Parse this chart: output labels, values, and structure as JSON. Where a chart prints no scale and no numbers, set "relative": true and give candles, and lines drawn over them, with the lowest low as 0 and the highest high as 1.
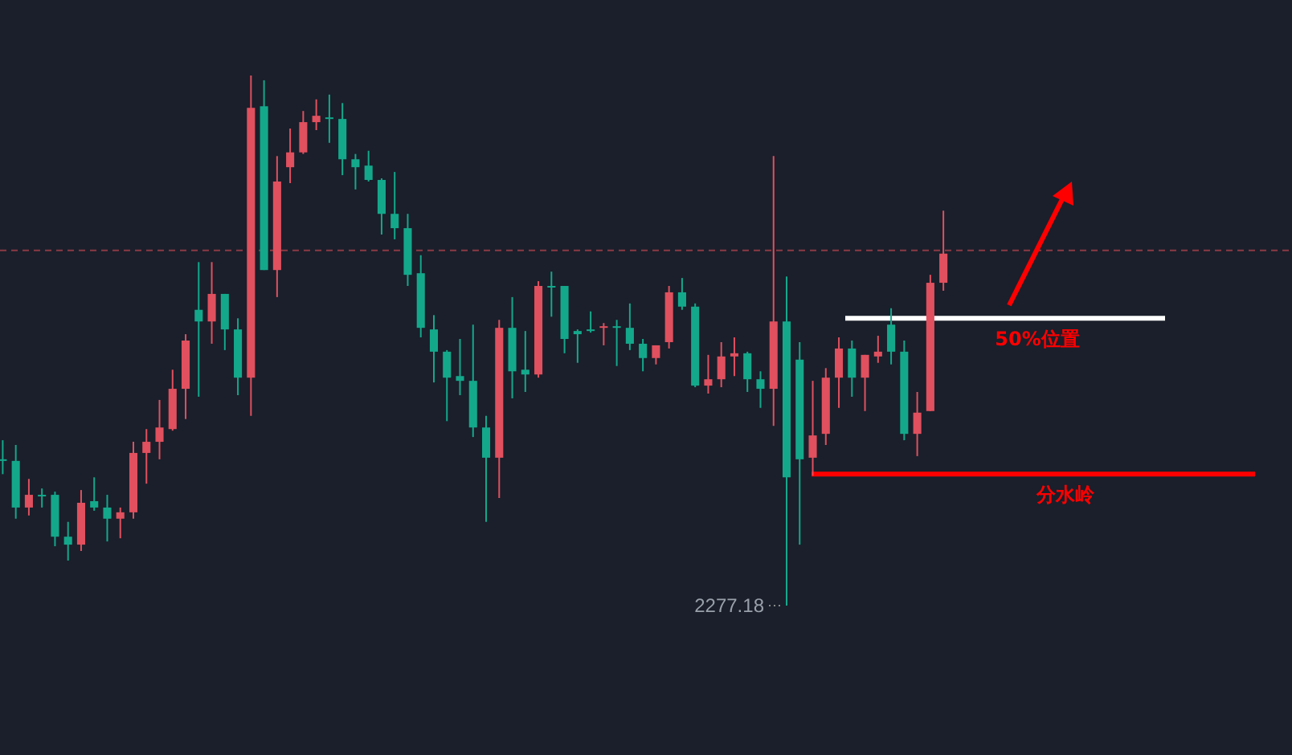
{
  "chart_data": {
    "type": "candlestick",
    "relative": true,
    "categories": [
      null,
      null,
      null,
      null,
      null,
      null,
      null,
      null,
      null,
      null,
      null,
      null,
      null,
      null,
      null,
      null,
      null,
      null,
      null,
      null,
      null,
      null,
      null,
      null,
      null,
      null,
      null,
      null,
      null,
      null,
      null,
      null,
      null,
      null,
      null,
      null,
      null,
      null,
      null,
      null,
      null,
      null,
      null,
      null,
      null,
      null,
      null,
      null,
      null,
      null,
      null,
      null,
      null,
      null,
      null,
      null,
      null,
      null,
      null,
      null,
      null,
      null,
      null,
      null,
      null,
      null,
      null,
      null,
      null,
      null,
      null,
      null,
      null
    ],
    "ohlc": [
      [
        0.276,
        0.312,
        0.248,
        0.273
      ],
      [
        0.273,
        0.303,
        0.164,
        0.185
      ],
      [
        0.185,
        0.239,
        0.17,
        0.209
      ],
      [
        0.209,
        0.221,
        0.185,
        0.209
      ],
      [
        0.209,
        0.215,
        0.112,
        0.13
      ],
      [
        0.13,
        0.158,
        0.085,
        0.115
      ],
      [
        0.115,
        0.218,
        0.103,
        0.194
      ],
      [
        0.197,
        0.242,
        0.179,
        0.185
      ],
      [
        0.185,
        0.209,
        0.121,
        0.164
      ],
      [
        0.164,
        0.185,
        0.127,
        0.176
      ],
      [
        0.176,
        0.309,
        0.164,
        0.288
      ],
      [
        0.288,
        0.333,
        0.23,
        0.309
      ],
      [
        0.309,
        0.388,
        0.276,
        0.336
      ],
      [
        0.333,
        0.445,
        0.33,
        0.409
      ],
      [
        0.409,
        0.512,
        0.352,
        0.5
      ],
      [
        0.558,
        0.648,
        0.394,
        0.536
      ],
      [
        0.536,
        0.648,
        0.494,
        0.588
      ],
      [
        0.588,
        0.588,
        0.482,
        0.521
      ],
      [
        0.521,
        0.542,
        0.397,
        0.43
      ],
      [
        0.43,
        1.0,
        0.358,
        0.939
      ],
      [
        0.942,
        0.991,
        0.633,
        0.633
      ],
      [
        0.633,
        0.848,
        0.582,
        0.8
      ],
      [
        0.827,
        0.9,
        0.797,
        0.855
      ],
      [
        0.855,
        0.933,
        0.852,
        0.912
      ],
      [
        0.912,
        0.955,
        0.897,
        0.924
      ],
      [
        0.921,
        0.964,
        0.873,
        0.921
      ],
      [
        0.918,
        0.948,
        0.812,
        0.842
      ],
      [
        0.842,
        0.852,
        0.785,
        0.827
      ],
      [
        0.83,
        0.858,
        0.8,
        0.803
      ],
      [
        0.803,
        0.806,
        0.7,
        0.739
      ],
      [
        0.739,
        0.818,
        0.691,
        0.712
      ],
      [
        0.712,
        0.739,
        0.603,
        0.624
      ],
      [
        0.627,
        0.661,
        0.506,
        0.524
      ],
      [
        0.521,
        0.548,
        0.421,
        0.479
      ],
      [
        0.479,
        0.482,
        0.348,
        0.43
      ],
      [
        0.433,
        0.503,
        0.397,
        0.424
      ],
      [
        0.424,
        0.53,
        0.318,
        0.336
      ],
      [
        0.336,
        0.358,
        0.158,
        0.279
      ],
      [
        0.279,
        0.539,
        0.203,
        0.524
      ],
      [
        0.524,
        0.582,
        0.391,
        0.442
      ],
      [
        0.445,
        0.518,
        0.403,
        0.436
      ],
      [
        0.436,
        0.612,
        0.43,
        0.603
      ],
      [
        0.603,
        0.63,
        0.545,
        0.603
      ],
      [
        0.603,
        0.603,
        0.476,
        0.503
      ],
      [
        0.518,
        0.521,
        0.458,
        0.512
      ],
      [
        0.521,
        0.555,
        0.515,
        0.521
      ],
      [
        0.527,
        0.533,
        0.491,
        0.527
      ],
      [
        0.527,
        0.539,
        0.452,
        0.527
      ],
      [
        0.524,
        0.57,
        0.482,
        0.494
      ],
      [
        0.494,
        0.503,
        0.442,
        0.467
      ],
      [
        0.467,
        0.491,
        0.455,
        0.491
      ],
      [
        0.497,
        0.603,
        0.485,
        0.591
      ],
      [
        0.591,
        0.618,
        0.558,
        0.564
      ],
      [
        0.564,
        0.57,
        0.412,
        0.415
      ],
      [
        0.415,
        0.473,
        0.4,
        0.427
      ],
      [
        0.427,
        0.497,
        0.412,
        0.47
      ],
      [
        0.47,
        0.506,
        0.433,
        0.476
      ],
      [
        0.476,
        0.479,
        0.403,
        0.427
      ],
      [
        0.427,
        0.442,
        0.373,
        0.409
      ],
      [
        0.409,
        0.848,
        0.339,
        0.536
      ],
      [
        0.536,
        0.621,
        0,
        0.242
      ],
      [
        0.464,
        0.497,
        0.115,
        0.276
      ],
      [
        0.279,
        0.424,
        0.245,
        0.321
      ],
      [
        0.324,
        0.448,
        0.303,
        0.43
      ],
      [
        0.43,
        0.506,
        0.373,
        0.485
      ],
      [
        0.485,
        0.5,
        0.394,
        0.43
      ],
      [
        0.43,
        0.473,
        0.367,
        0.473
      ],
      [
        0.47,
        0.509,
        0.458,
        0.479
      ],
      [
        0.53,
        0.561,
        0.455,
        0.479
      ],
      [
        0.479,
        0.5,
        0.312,
        0.324
      ],
      [
        0.324,
        0.403,
        0.282,
        0.364
      ],
      [
        0.367,
        0.624,
        0.367,
        0.609
      ],
      [
        0.609,
        0.745,
        0.594,
        0.664
      ]
    ],
    "colors": [
      "#14a88b",
      "#14a88b",
      "#e0505e",
      "#14a88b",
      "#14a88b",
      "#14a88b",
      "#e0505e",
      "#14a88b",
      "#14a88b",
      "#e0505e",
      "#e0505e",
      "#e0505e",
      "#e0505e",
      "#e0505e",
      "#e0505e",
      "#14a88b",
      "#e0505e",
      "#14a88b",
      "#14a88b",
      "#e0505e",
      "#14a88b",
      "#e0505e",
      "#e0505e",
      "#e0505e",
      "#e0505e",
      "#14a88b",
      "#14a88b",
      "#14a88b",
      "#14a88b",
      "#14a88b",
      "#14a88b",
      "#14a88b",
      "#14a88b",
      "#14a88b",
      "#14a88b",
      "#14a88b",
      "#14a88b",
      "#14a88b",
      "#e0505e",
      "#14a88b",
      "#14a88b",
      "#e0505e",
      "#14a88b",
      "#14a88b",
      "#14a88b",
      "#14a88b",
      "#e0505e",
      "#14a88b",
      "#14a88b",
      "#14a88b",
      "#e0505e",
      "#e0505e",
      "#14a88b",
      "#14a88b",
      "#e0505e",
      "#e0505e",
      "#e0505e",
      "#14a88b",
      "#14a88b",
      "#e0505e",
      "#14a88b",
      "#14a88b",
      "#e0505e",
      "#e0505e",
      "#e0505e",
      "#14a88b",
      "#e0505e",
      "#e0505e",
      "#14a88b",
      "#14a88b",
      "#e0505e",
      "#e0505e",
      "#e0505e"
    ],
    "ref_lines": [
      {
        "axis": "y",
        "value": 0.67,
        "color": "#8b3a44",
        "line_style": "dashed"
      },
      {
        "axis": "y",
        "value": 0.542,
        "color": "#ffffff",
        "line_style": "solid",
        "label": "50%位置"
      },
      {
        "axis": "y",
        "value": 0.248,
        "color": "#ff0000",
        "line_style": "solid",
        "label": "分水岭"
      }
    ],
    "annotations": [
      "2277.18"
    ]
  }
}
